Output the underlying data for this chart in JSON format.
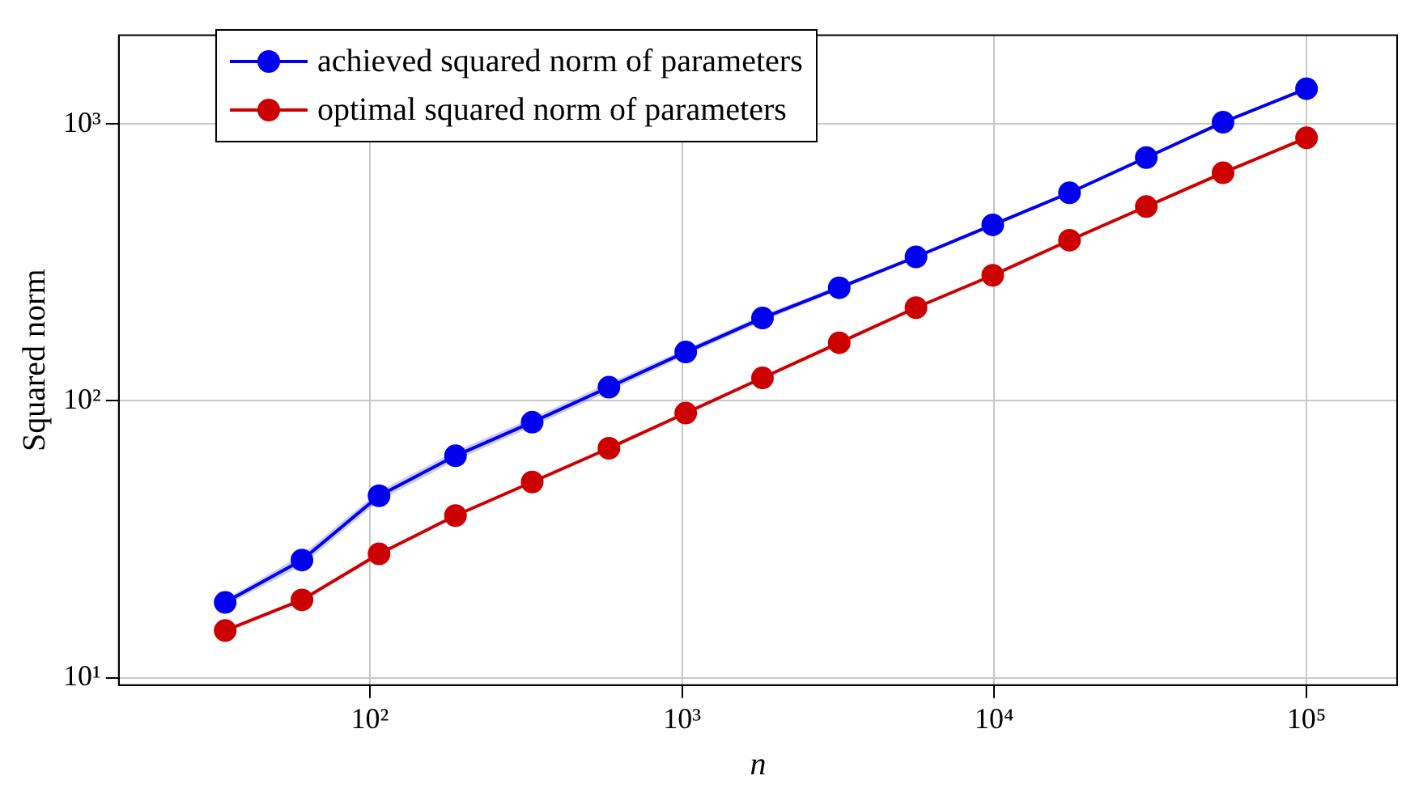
{
  "chart_data": {
    "type": "line",
    "xlabel": "n",
    "ylabel": "Squared norm",
    "log": "xy",
    "grid": true,
    "legend": "top left",
    "marker": "circle",
    "line_style": "solid",
    "x": [
      34.4,
      60.6,
      107,
      188,
      331,
      583,
      1027,
      1809,
      3186,
      5612,
      9885,
      17410,
      30670,
      54020,
      100000
    ],
    "xlim": [
      15.7,
      195000
    ],
    "ylim": [
      9.4,
      2090
    ],
    "xticks": [
      {
        "value": 100,
        "label": "10²"
      },
      {
        "value": 1000,
        "label": "10³"
      },
      {
        "value": 10000,
        "label": "10⁴"
      },
      {
        "value": 100000,
        "label": "10⁵"
      }
    ],
    "yticks": [
      {
        "value": 10,
        "label": "10¹"
      },
      {
        "value": 100,
        "label": "10²"
      },
      {
        "value": 1000,
        "label": "10³"
      }
    ],
    "series": [
      {
        "name": "achieved squared norm of parameters",
        "color": "#0000ee",
        "values": [
          18.7,
          26.6,
          45.4,
          63.3,
          83.7,
          112,
          150,
          199,
          256,
          331,
          432,
          564,
          756,
          1014,
          1340
        ],
        "lower": [
          18.2,
          25.4,
          43.6,
          60.8,
          80.7,
          108,
          146,
          194,
          251,
          326,
          426,
          557,
          747,
          1003,
          1325
        ],
        "upper": [
          19.2,
          27.8,
          47.2,
          65.8,
          86.7,
          116,
          154,
          204,
          261,
          336,
          438,
          571,
          765,
          1025,
          1355
        ]
      },
      {
        "name": "optimal squared norm of parameters",
        "color": "#cc0000",
        "values": [
          14.8,
          19.1,
          28.0,
          38.5,
          50.9,
          67.4,
          90.3,
          121,
          162,
          217,
          284,
          380,
          503,
          666,
          891
        ]
      }
    ]
  }
}
